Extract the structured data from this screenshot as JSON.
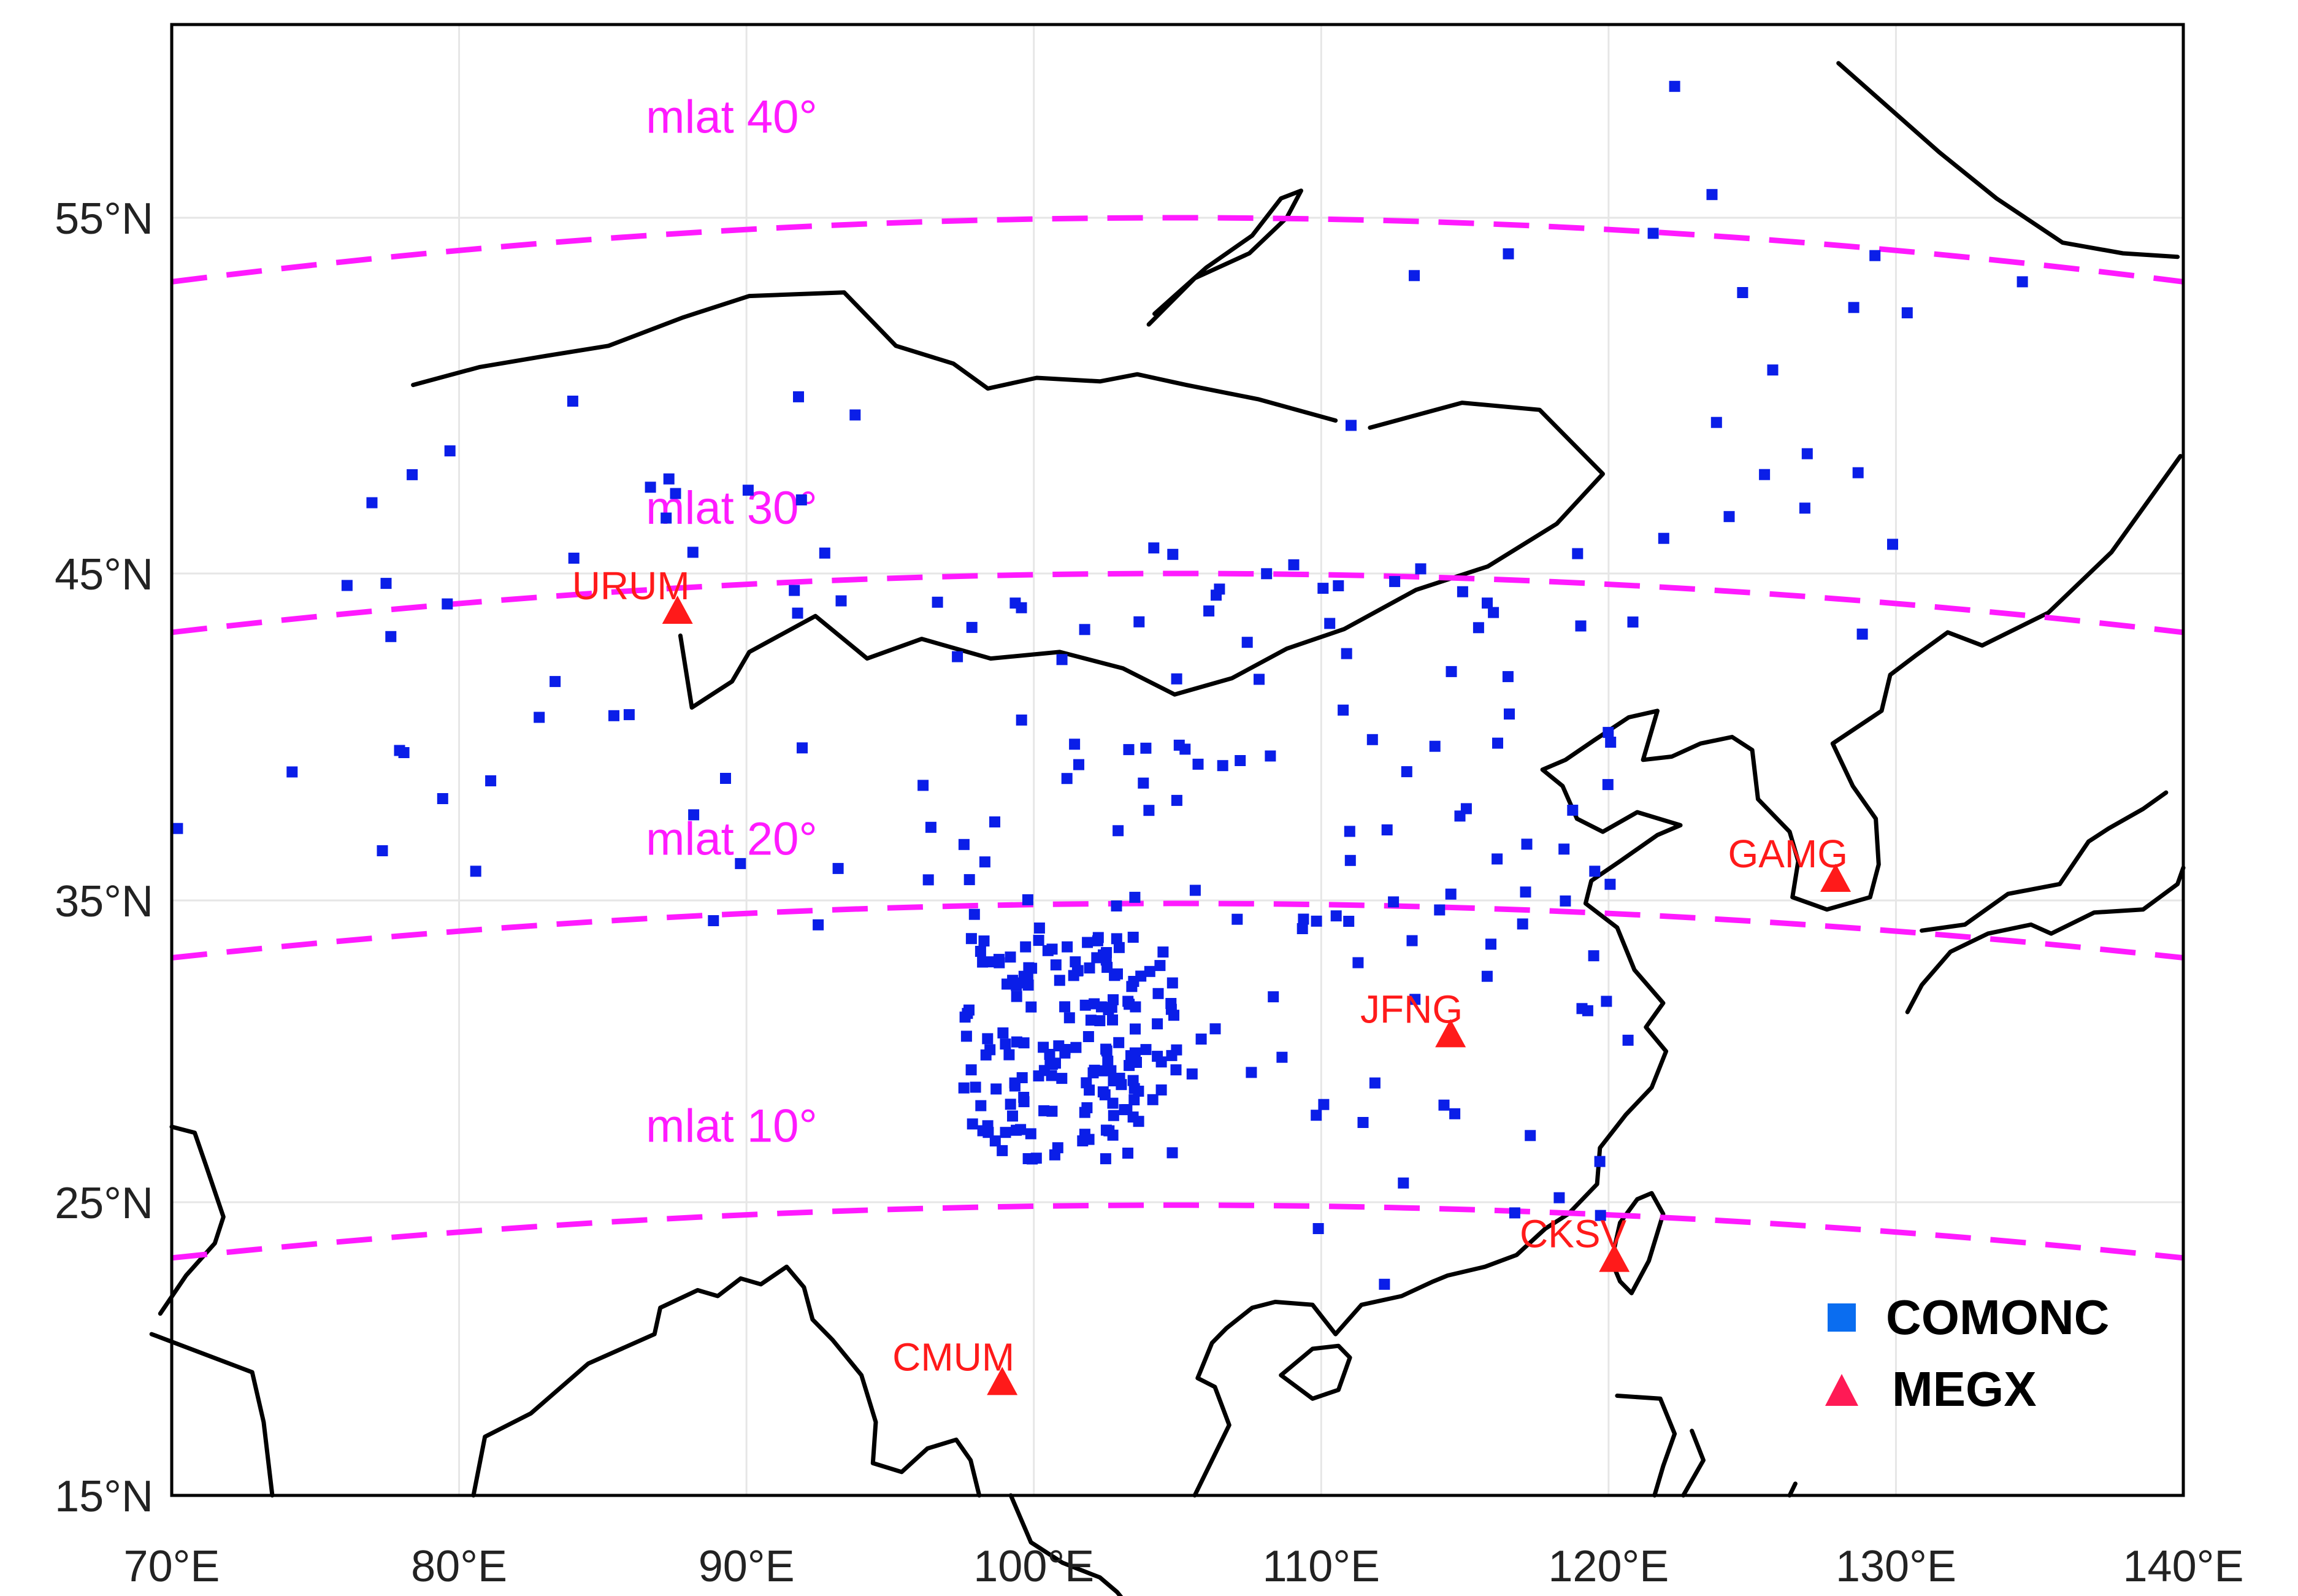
{
  "map": {
    "lon_range": [
      70,
      140
    ],
    "lat_range": [
      15,
      60
    ],
    "x_ticks": [
      {
        "lon": 70,
        "label": "70°E"
      },
      {
        "lon": 80,
        "label": "80°E"
      },
      {
        "lon": 90,
        "label": "90°E"
      },
      {
        "lon": 100,
        "label": "100°E"
      },
      {
        "lon": 110,
        "label": "110°E"
      },
      {
        "lon": 120,
        "label": "120°E"
      },
      {
        "lon": 130,
        "label": "130°E"
      },
      {
        "lon": 140,
        "label": "140°E"
      }
    ],
    "y_ticks": [
      {
        "lat": 15,
        "label": "15°N"
      },
      {
        "lat": 25,
        "label": "25°N"
      },
      {
        "lat": 35,
        "label": "35°N"
      },
      {
        "lat": 45,
        "label": "45°N"
      },
      {
        "lat": 55,
        "label": "55°N"
      }
    ],
    "grid": true,
    "colors": {
      "comonc": "#0a1ee8",
      "megx": "#ff1a1a",
      "mlat": "#ff1aff",
      "coast": "#000000"
    }
  },
  "mlat_lines": [
    {
      "label": "mlat 40°",
      "label_lon": 86.5,
      "label_lat": 57.2
    },
    {
      "label": "mlat 30°",
      "label_lon": 86.5,
      "label_lat": 46.4
    },
    {
      "label": "mlat 20°",
      "label_lon": 86.5,
      "label_lat": 36.4
    },
    {
      "label": "mlat 10°",
      "label_lon": 86.5,
      "label_lat": 27.0
    }
  ],
  "stations": [
    {
      "name": "URUM",
      "lon": 87.6,
      "lat": 43.8
    },
    {
      "name": "JFNG",
      "lon": 114.5,
      "lat": 30.5
    },
    {
      "name": "GAMG",
      "lon": 127.9,
      "lat": 35.6
    },
    {
      "name": "CKSV",
      "lon": 120.2,
      "lat": 23.0
    },
    {
      "name": "CMUM",
      "lon": 98.9,
      "lat": 18.8
    }
  ],
  "legend": {
    "position": "bottom-right",
    "items": [
      {
        "label": "COMONC",
        "symbol": "square"
      },
      {
        "label": "MEGX",
        "symbol": "triangle"
      }
    ]
  }
}
